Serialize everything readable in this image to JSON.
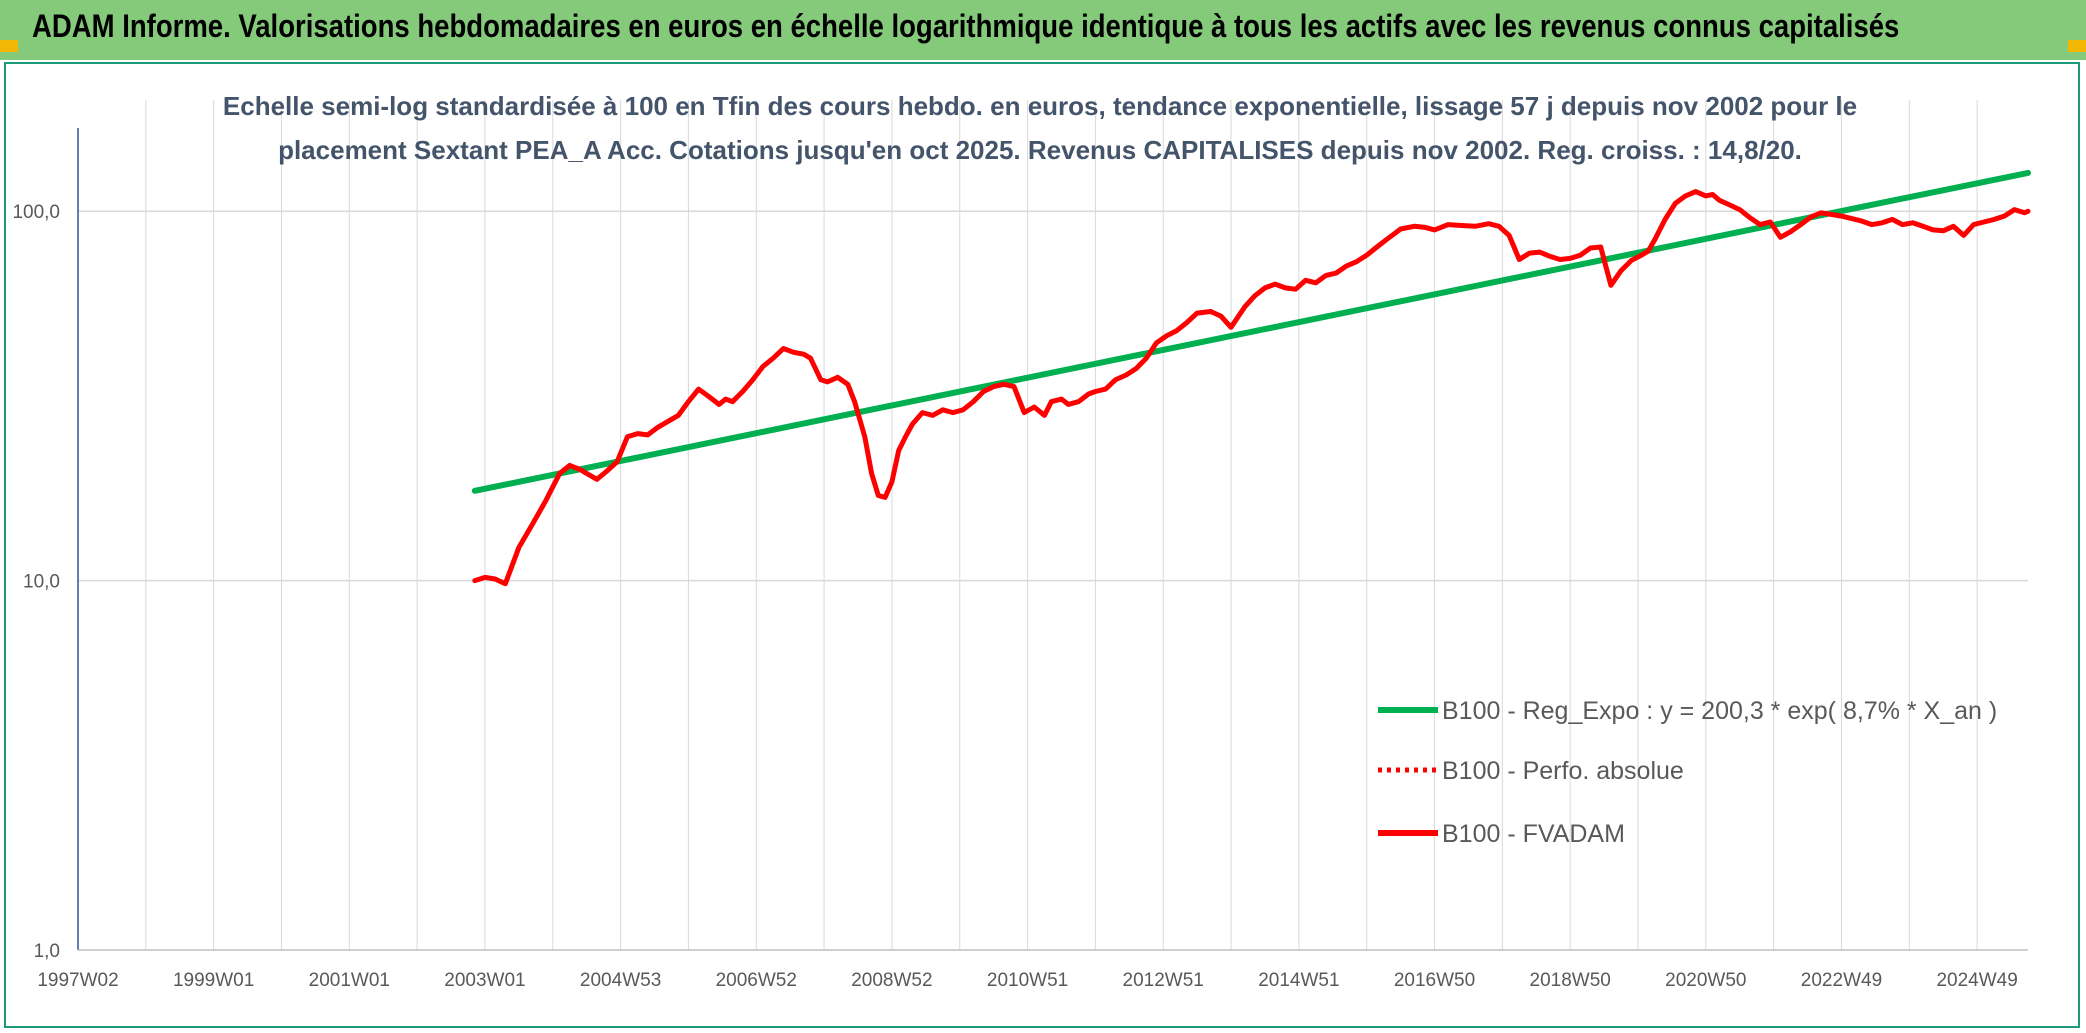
{
  "header": {
    "title": "ADAM Informe. Valorisations hebdomadaires en euros en échelle logarithmique identique à tous les actifs avec les revenus connus capitalisés"
  },
  "colors": {
    "header_bg": "#85c97b",
    "accent_corner": "#f2b705",
    "frame_border": "#1a9a7a",
    "trend": "#00b050",
    "series": "#ff0000",
    "gridline": "#d9d9d9",
    "axis": "#2f5597"
  },
  "chart_data": {
    "type": "line",
    "title_lines": [
      "Echelle semi-log standardisée à 100 en Tfin des cours hebdo. en euros, tendance exponentielle, lissage 57 j depuis nov 2002 pour le",
      "placement Sextant PEA_A Acc. Cotations jusqu'en oct 2025. Revenus CAPITALISES depuis nov 2002. Reg. croiss. : 14,8/20."
    ],
    "y_scale": "log",
    "ylim": [
      1,
      200
    ],
    "xlim": [
      1997.0,
      2025.75
    ],
    "y_ticks": [
      {
        "value": 1,
        "label": "1,0"
      },
      {
        "value": 10,
        "label": "10,0"
      },
      {
        "value": 100,
        "label": "100,0"
      }
    ],
    "x_ticks": [
      {
        "value": 1997.0,
        "label": "1997W02"
      },
      {
        "value": 1999.0,
        "label": "1999W01"
      },
      {
        "value": 2001.0,
        "label": "2001W01"
      },
      {
        "value": 2003.0,
        "label": "2003W01"
      },
      {
        "value": 2005.0,
        "label": "2004W53"
      },
      {
        "value": 2007.0,
        "label": "2006W52"
      },
      {
        "value": 2009.0,
        "label": "2008W52"
      },
      {
        "value": 2011.0,
        "label": "2010W51"
      },
      {
        "value": 2013.0,
        "label": "2012W51"
      },
      {
        "value": 2015.0,
        "label": "2014W51"
      },
      {
        "value": 2017.0,
        "label": "2016W50"
      },
      {
        "value": 2019.0,
        "label": "2018W50"
      },
      {
        "value": 2021.0,
        "label": "2020W50"
      },
      {
        "value": 2023.0,
        "label": "2022W49"
      },
      {
        "value": 2025.0,
        "label": "2024W49"
      }
    ],
    "vertical_grid": true,
    "horizontal_grid": true,
    "legend_position": "center-right",
    "series": [
      {
        "name": "B100 - Reg_Expo : y = 200,3 * exp( 8,7% *  X_an )",
        "style": "solid",
        "color": "#00b050",
        "x": [
          2002.85,
          2025.75
        ],
        "y": [
          17.5,
          127
        ]
      },
      {
        "name": "B100 - Perfo. absolue",
        "style": "dotted",
        "color": "#ff0000",
        "x": [],
        "y": []
      },
      {
        "name": "B100 - FVADAM",
        "style": "solid",
        "color": "#ff0000",
        "x": [
          2002.85,
          2003.0,
          2003.15,
          2003.3,
          2003.5,
          2003.7,
          2003.9,
          2004.1,
          2004.25,
          2004.4,
          2004.5,
          2004.65,
          2004.8,
          2004.95,
          2005.1,
          2005.25,
          2005.4,
          2005.55,
          2005.7,
          2005.85,
          2006.0,
          2006.15,
          2006.3,
          2006.45,
          2006.55,
          2006.65,
          2006.8,
          2006.95,
          2007.1,
          2007.25,
          2007.4,
          2007.55,
          2007.7,
          2007.8,
          2007.95,
          2008.05,
          2008.2,
          2008.35,
          2008.45,
          2008.6,
          2008.7,
          2008.8,
          2008.9,
          2009.0,
          2009.1,
          2009.2,
          2009.3,
          2009.45,
          2009.6,
          2009.75,
          2009.9,
          2010.05,
          2010.2,
          2010.35,
          2010.5,
          2010.65,
          2010.8,
          2010.95,
          2011.1,
          2011.25,
          2011.35,
          2011.5,
          2011.6,
          2011.75,
          2011.9,
          2012.0,
          2012.15,
          2012.3,
          2012.45,
          2012.6,
          2012.75,
          2012.9,
          2013.05,
          2013.2,
          2013.35,
          2013.5,
          2013.7,
          2013.85,
          2014.0,
          2014.2,
          2014.35,
          2014.5,
          2014.65,
          2014.8,
          2014.95,
          2015.1,
          2015.25,
          2015.4,
          2015.55,
          2015.7,
          2015.85,
          2016.0,
          2016.15,
          2016.3,
          2016.5,
          2016.7,
          2016.85,
          2017.0,
          2017.2,
          2017.4,
          2017.6,
          2017.8,
          2017.95,
          2018.1,
          2018.25,
          2018.4,
          2018.55,
          2018.7,
          2018.85,
          2019.0,
          2019.15,
          2019.3,
          2019.45,
          2019.6,
          2019.75,
          2019.9,
          2020.05,
          2020.15,
          2020.25,
          2020.4,
          2020.55,
          2020.7,
          2020.85,
          2021.0,
          2021.1,
          2021.2,
          2021.35,
          2021.5,
          2021.65,
          2021.8,
          2021.95,
          2022.1,
          2022.25,
          2022.4,
          2022.55,
          2022.7,
          2022.85,
          2023.0,
          2023.15,
          2023.3,
          2023.45,
          2023.6,
          2023.75,
          2023.9,
          2024.05,
          2024.2,
          2024.35,
          2024.5,
          2024.65,
          2024.8,
          2024.95,
          2025.1,
          2025.25,
          2025.4,
          2025.55,
          2025.7,
          2025.75
        ],
        "y": [
          10.0,
          10.2,
          10.1,
          9.8,
          12.3,
          14.2,
          16.5,
          19.5,
          20.5,
          20.0,
          19.5,
          18.8,
          19.8,
          21.0,
          24.5,
          25.0,
          24.8,
          26.0,
          27.0,
          28.0,
          30.5,
          33.0,
          31.5,
          30.0,
          31.0,
          30.5,
          32.5,
          35.0,
          38.0,
          40.0,
          42.5,
          41.5,
          41.0,
          40.0,
          35.0,
          34.5,
          35.5,
          34.0,
          30.5,
          24.5,
          19.5,
          17.0,
          16.8,
          18.5,
          22.5,
          24.5,
          26.5,
          28.5,
          28.0,
          29.0,
          28.5,
          29.0,
          30.5,
          32.5,
          33.5,
          34.0,
          33.5,
          28.5,
          29.5,
          28.0,
          30.5,
          31.0,
          30.0,
          30.5,
          32.0,
          32.5,
          33.0,
          35.0,
          36.0,
          37.5,
          40.0,
          44.0,
          46.0,
          47.5,
          50.0,
          53.0,
          53.5,
          52.0,
          48.5,
          55.0,
          59.0,
          62.0,
          63.5,
          62.0,
          61.5,
          65.0,
          64.0,
          67.0,
          68.0,
          71.0,
          73.0,
          76.0,
          80.0,
          84.0,
          89.5,
          91.0,
          90.5,
          89.0,
          92.0,
          91.5,
          91.0,
          92.5,
          91.0,
          86.0,
          74.0,
          77.0,
          77.5,
          75.5,
          74.0,
          74.5,
          76.0,
          79.5,
          80.0,
          63.0,
          69.0,
          73.5,
          76.0,
          78.0,
          84.0,
          95.0,
          105.0,
          110.0,
          113.0,
          110.0,
          111.0,
          107.0,
          104.0,
          101.0,
          96.0,
          92.0,
          93.5,
          85.0,
          88.0,
          92.0,
          96.5,
          99.0,
          98.0,
          97.0,
          95.5,
          94.0,
          92.0,
          93.0,
          95.0,
          92.0,
          93.0,
          91.0,
          89.0,
          88.5,
          91.0,
          86.0,
          92.0,
          93.5,
          95.0,
          97.0,
          101.0,
          99.0,
          100.0
        ]
      }
    ]
  }
}
